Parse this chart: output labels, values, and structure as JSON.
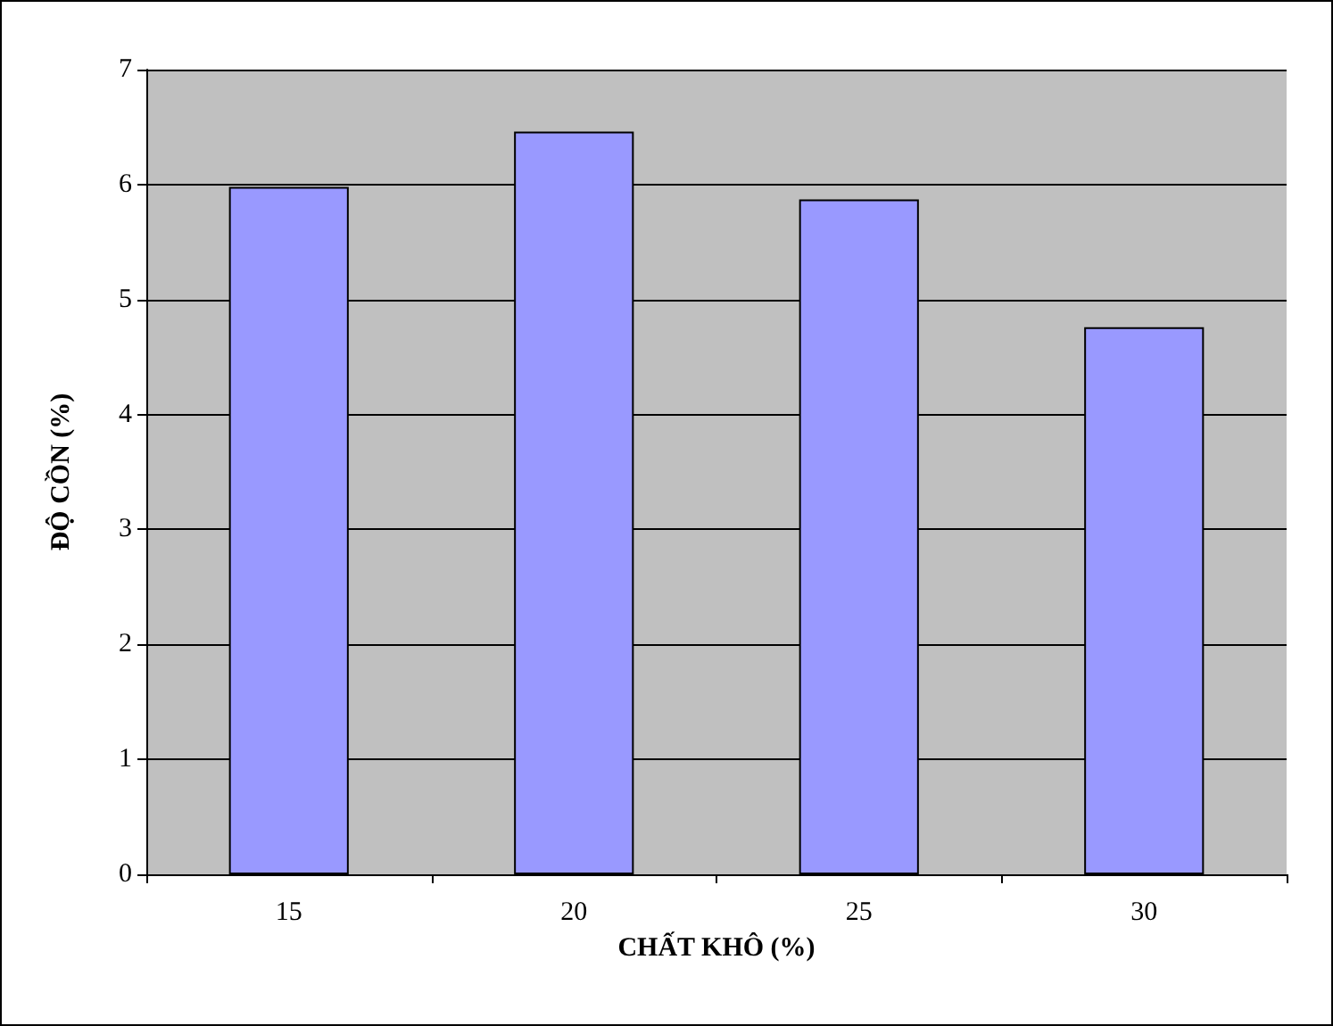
{
  "chart_data": {
    "type": "bar",
    "xlabel": "CHẤT KHÔ (%)",
    "ylabel": "ĐỘ CỒN (%)",
    "categories": [
      "15",
      "20",
      "25",
      "30"
    ],
    "values": [
      5.98,
      6.46,
      5.87,
      4.76
    ],
    "color": "#9999ff",
    "ylim": [
      0,
      7
    ],
    "yticks": [
      0,
      1,
      2,
      3,
      4,
      5,
      6,
      7
    ],
    "grid": "y"
  }
}
